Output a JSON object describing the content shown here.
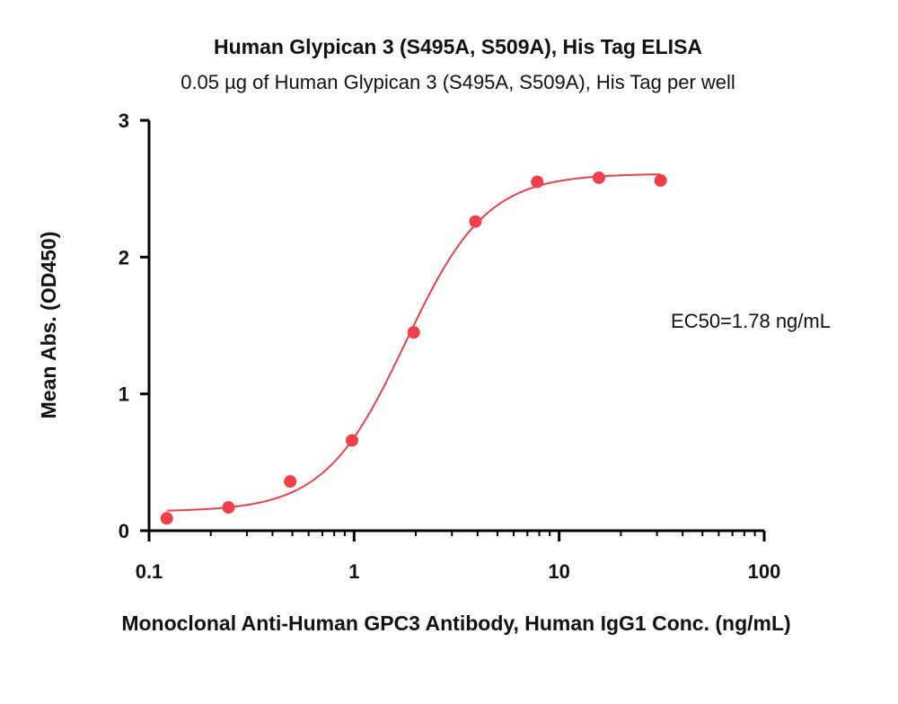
{
  "chart_data": {
    "type": "scatter",
    "title": "Human Glypican 3 (S495A, S509A), His Tag ELISA",
    "subtitle": "0.05 µg of Human Glypican 3 (S495A, S509A), His Tag per well",
    "xlabel": "Monoclonal Anti-Human GPC3 Antibody, Human IgG1 Conc. (ng/mL)",
    "ylabel": "Mean Abs. (OD450)",
    "x_scale": "log",
    "xlim": [
      0.1,
      100
    ],
    "ylim": [
      0,
      3
    ],
    "x_ticks": [
      "0.1",
      "1",
      "10",
      "100"
    ],
    "y_ticks": [
      "0",
      "1",
      "2",
      "3"
    ],
    "grid": false,
    "series": [
      {
        "x": [
          0.122,
          0.244,
          0.488,
          0.977,
          1.953,
          3.906,
          7.813,
          15.625,
          31.25
        ],
        "y": [
          0.09,
          0.17,
          0.36,
          0.66,
          1.45,
          2.26,
          2.55,
          2.58,
          2.56
        ],
        "color": "#ef3f4a",
        "fit": "4PL",
        "fit_params": {
          "bottom": 0.14,
          "top": 2.61,
          "ec50": 1.78,
          "hill": 2.2
        }
      }
    ],
    "annotations": [
      {
        "text": "EC50=1.78 ng/mL"
      }
    ]
  }
}
